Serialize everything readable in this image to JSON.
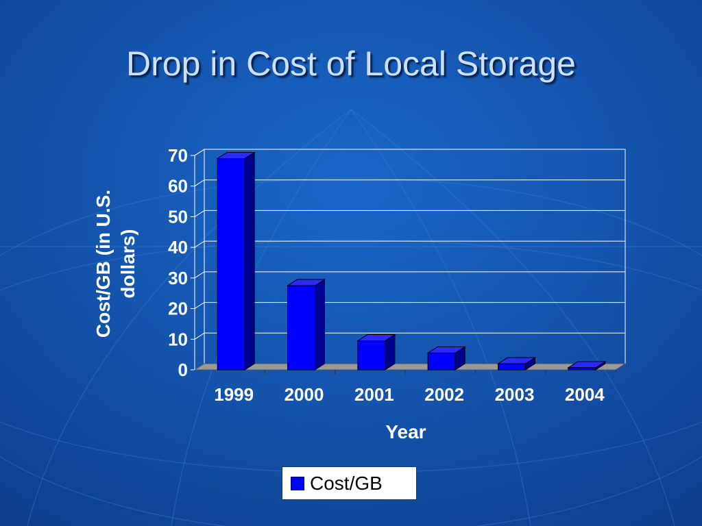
{
  "slide": {
    "title": "Drop in Cost of Local Storage"
  },
  "chart_data": {
    "type": "bar",
    "title": "",
    "xlabel": "Year",
    "ylabel": "Cost/GB (in U.S. dollars)",
    "categories": [
      "1999",
      "2000",
      "2001",
      "2002",
      "2003",
      "2004"
    ],
    "series": [
      {
        "name": "Cost/GB",
        "values": [
          69,
          27.5,
          9.5,
          5.5,
          2,
          0.7
        ]
      }
    ],
    "ylim": [
      0,
      70
    ],
    "yticks": [
      0,
      10,
      20,
      30,
      40,
      50,
      60,
      70
    ],
    "grid": true,
    "legend": "bottom",
    "three_d": true,
    "colors": {
      "bar_front": "#0000ff",
      "bar_top": "#2a2aff",
      "bar_side": "#000090",
      "floor": "#9a9a9a",
      "gridline": "#ffffff"
    }
  }
}
